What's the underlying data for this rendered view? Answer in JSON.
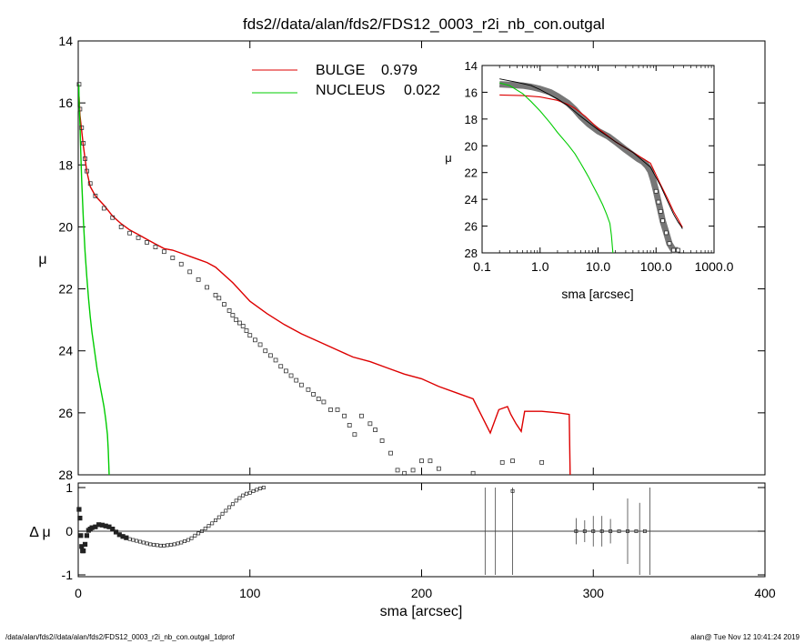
{
  "title": "fds2//data/alan/fds2/FDS12_0003_r2i_nb_con.outgal",
  "footer": {
    "path": "/data/alan/fds2//data/alan/fds2/FDS12_0003_r2i_nb_con.outgal_1dprof",
    "stamp": "alan@   Tue Nov 12 10:41:24 2019"
  },
  "legend": [
    {
      "label": "BULGE",
      "value": "0.979",
      "color": "#dd0000"
    },
    {
      "label": "NUCLEUS",
      "value": "0.022",
      "color": "#00cc00"
    }
  ],
  "chart_data": [
    {
      "id": "main_profile",
      "type": "scatter",
      "xlabel": "",
      "ylabel": "μ",
      "xlim": [
        0,
        400
      ],
      "ylim": [
        28,
        14
      ],
      "y_inverted": true,
      "yticks": [
        14,
        16,
        18,
        20,
        22,
        24,
        26,
        28
      ],
      "series": [
        {
          "name": "BULGE",
          "style": "line",
          "color": "#dd0000",
          "x": [
            0.5,
            1,
            2,
            3,
            4,
            5,
            7,
            10,
            15,
            20,
            25,
            30,
            35,
            40,
            45,
            50,
            55,
            60,
            65,
            70,
            75,
            80,
            90,
            100,
            110,
            120,
            130,
            140,
            150,
            160,
            170,
            180,
            190,
            200,
            210,
            220,
            230,
            235,
            240,
            245,
            250,
            252,
            255,
            258,
            260,
            265,
            270,
            280,
            286,
            286.5
          ],
          "y": [
            15.8,
            16.4,
            16.9,
            17.4,
            17.8,
            18.2,
            18.7,
            19.0,
            19.3,
            19.65,
            19.9,
            20.1,
            20.25,
            20.4,
            20.55,
            20.7,
            20.75,
            20.85,
            20.95,
            21.05,
            21.15,
            21.3,
            21.8,
            22.4,
            22.8,
            23.15,
            23.45,
            23.7,
            23.95,
            24.2,
            24.35,
            24.55,
            24.75,
            24.9,
            25.15,
            25.35,
            25.55,
            26.1,
            26.65,
            25.9,
            25.8,
            26.05,
            26.35,
            26.6,
            25.95,
            25.95,
            25.95,
            26.0,
            26.05,
            28.0
          ]
        },
        {
          "name": "NUCLEUS",
          "style": "line",
          "color": "#00cc00",
          "x": [
            0.3,
            0.5,
            1,
            1.5,
            2,
            3,
            4,
            5,
            6,
            7,
            8,
            9,
            10,
            11,
            12,
            13,
            14,
            15,
            16,
            17,
            17.5,
            18
          ],
          "y": [
            15.4,
            15.9,
            16.7,
            17.6,
            18.5,
            19.8,
            20.8,
            21.6,
            22.3,
            22.9,
            23.4,
            23.8,
            24.2,
            24.6,
            24.9,
            25.2,
            25.5,
            25.8,
            26.2,
            26.7,
            27.2,
            28.0
          ]
        },
        {
          "name": "data",
          "style": "open-squares",
          "color": "#333333",
          "x": [
            0.5,
            1,
            2,
            3,
            4,
            5,
            7,
            10,
            15,
            20,
            25,
            30,
            35,
            40,
            45,
            50,
            55,
            60,
            65,
            70,
            75,
            80,
            82,
            85,
            88,
            90,
            92,
            94,
            96,
            98,
            100,
            103,
            106,
            109,
            112,
            115,
            118,
            121,
            124,
            127,
            130,
            134,
            137,
            140,
            143,
            147,
            151,
            155,
            158,
            161,
            165,
            170,
            173,
            177,
            182,
            186,
            190,
            195,
            200,
            205,
            210,
            230,
            247,
            253,
            270
          ],
          "y": [
            15.4,
            16.2,
            16.8,
            17.3,
            17.8,
            18.2,
            18.6,
            19.0,
            19.4,
            19.7,
            20.0,
            20.2,
            20.35,
            20.5,
            20.65,
            20.8,
            21.0,
            21.2,
            21.45,
            21.7,
            21.95,
            22.2,
            22.3,
            22.5,
            22.7,
            22.85,
            23.0,
            23.1,
            23.2,
            23.35,
            23.5,
            23.65,
            23.8,
            24.0,
            24.15,
            24.3,
            24.5,
            24.65,
            24.8,
            24.95,
            25.1,
            25.25,
            25.4,
            25.55,
            25.65,
            25.9,
            25.9,
            26.1,
            26.4,
            26.7,
            26.1,
            26.35,
            26.55,
            26.9,
            27.3,
            27.85,
            27.95,
            27.85,
            27.55,
            27.55,
            27.8,
            27.95,
            27.6,
            27.55,
            27.6
          ]
        }
      ]
    },
    {
      "id": "residuals",
      "type": "scatter",
      "xlabel": "sma [arcsec]",
      "ylabel": "Δ μ",
      "xlim": [
        0,
        400
      ],
      "ylim": [
        -1,
        1
      ],
      "xticks": [
        0,
        100,
        200,
        300,
        400
      ],
      "yticks": [
        -1,
        0,
        1
      ],
      "series": [
        {
          "name": "residual",
          "style": "open-squares",
          "color": "#222222",
          "x": [
            0.5,
            1,
            1.5,
            2,
            2.5,
            3,
            4,
            5,
            6,
            7,
            8,
            10,
            12,
            14,
            16,
            18,
            20,
            22,
            24,
            26,
            28,
            30,
            32,
            34,
            36,
            38,
            40,
            42,
            44,
            46,
            48,
            50,
            52,
            54,
            56,
            58,
            60,
            62,
            64,
            66,
            68,
            70,
            72,
            74,
            76,
            78,
            80,
            82,
            84,
            86,
            88,
            90,
            92,
            94,
            96,
            98,
            100,
            102,
            104,
            106,
            108,
            253,
            290,
            295,
            300,
            305,
            310,
            315,
            320,
            325,
            330
          ],
          "y": [
            0.5,
            0.3,
            -0.1,
            -0.35,
            -0.45,
            -0.45,
            -0.3,
            -0.1,
            0.02,
            0.05,
            0.08,
            0.1,
            0.15,
            0.14,
            0.12,
            0.1,
            0.05,
            -0.02,
            -0.08,
            -0.12,
            -0.15,
            -0.18,
            -0.2,
            -0.22,
            -0.24,
            -0.26,
            -0.28,
            -0.3,
            -0.31,
            -0.32,
            -0.33,
            -0.33,
            -0.32,
            -0.31,
            -0.3,
            -0.28,
            -0.26,
            -0.23,
            -0.2,
            -0.16,
            -0.1,
            -0.05,
            0.0,
            0.06,
            0.12,
            0.18,
            0.25,
            0.32,
            0.4,
            0.47,
            0.55,
            0.62,
            0.7,
            0.76,
            0.82,
            0.86,
            0.88,
            0.92,
            0.95,
            0.98,
            1.0,
            0.92,
            0.0,
            0.0,
            0.0,
            0.0,
            0.0,
            0.0,
            0.0,
            0.0,
            0.0
          ]
        }
      ],
      "error_bars": [
        {
          "x": 237,
          "lo": -1,
          "hi": 1
        },
        {
          "x": 243,
          "lo": -1,
          "hi": 1
        },
        {
          "x": 253,
          "lo": -1,
          "hi": 1
        },
        {
          "x": 290,
          "lo": -0.3,
          "hi": 0.3
        },
        {
          "x": 295,
          "lo": -0.25,
          "hi": 0.25
        },
        {
          "x": 300,
          "lo": -0.35,
          "hi": 0.35
        },
        {
          "x": 305,
          "lo": -0.35,
          "hi": 0.35
        },
        {
          "x": 310,
          "lo": -0.28,
          "hi": 0.28
        },
        {
          "x": 320,
          "lo": -0.75,
          "hi": 0.75
        },
        {
          "x": 327,
          "lo": -1,
          "hi": 0.65
        },
        {
          "x": 333,
          "lo": -1,
          "hi": 1
        }
      ]
    },
    {
      "id": "inset_log",
      "type": "scatter",
      "xscale": "log",
      "xlabel": "sma [arcsec]",
      "ylabel": "μ",
      "xlim": [
        0.1,
        1000
      ],
      "ylim": [
        28,
        14
      ],
      "xticks": [
        0.1,
        1.0,
        10.0,
        100.0,
        1000.0
      ],
      "xticklabels": [
        "0.1",
        "1.0",
        "10.0",
        "100.0",
        "1000.0"
      ],
      "yticks": [
        14,
        16,
        18,
        20,
        22,
        24,
        26,
        28
      ],
      "series": [
        {
          "name": "data",
          "style": "thick-band",
          "color": "#777777",
          "x": [
            0.2,
            0.3,
            0.5,
            0.7,
            1.0,
            1.5,
            2.0,
            3.0,
            4.0,
            5.0,
            7.0,
            10.0,
            15.0,
            20.0,
            30.0,
            40.0,
            50.0,
            60.0,
            70.0,
            80.0,
            90.0,
            100.0,
            110.0,
            120.0,
            130.0,
            150.0,
            170.0,
            200.0,
            240.0
          ],
          "y": [
            15.4,
            15.45,
            15.5,
            15.6,
            15.75,
            16.0,
            16.3,
            16.8,
            17.3,
            17.8,
            18.4,
            18.9,
            19.3,
            19.7,
            20.3,
            20.7,
            21.0,
            21.2,
            21.5,
            21.9,
            22.6,
            23.4,
            24.2,
            24.9,
            25.6,
            26.5,
            27.3,
            27.8,
            27.8
          ]
        },
        {
          "name": "BULGE",
          "style": "line",
          "color": "#dd0000",
          "x": [
            0.2,
            0.5,
            1.0,
            2.0,
            3.0,
            4.0,
            6.0,
            10.0,
            20.0,
            40.0,
            80.0,
            120.0,
            160.0,
            200.0,
            240.0,
            270.0,
            286.0
          ],
          "y": [
            16.2,
            16.25,
            16.35,
            16.6,
            16.9,
            17.2,
            17.8,
            18.7,
            19.7,
            20.5,
            21.3,
            22.9,
            24.0,
            24.9,
            25.5,
            25.9,
            26.1
          ]
        },
        {
          "name": "NUCLEUS",
          "style": "line",
          "color": "#00cc00",
          "x": [
            0.2,
            0.3,
            0.5,
            0.7,
            1.0,
            1.5,
            2.0,
            3.0,
            4.0,
            5.0,
            6.0,
            7.0,
            8.0,
            10.0,
            12.0,
            14.0,
            16.0,
            17.0,
            18.0
          ],
          "y": [
            15.3,
            15.5,
            16.1,
            16.7,
            17.4,
            18.3,
            19.0,
            19.9,
            20.6,
            21.3,
            21.9,
            22.4,
            22.9,
            23.7,
            24.4,
            25.1,
            25.8,
            26.7,
            28.0
          ]
        },
        {
          "name": "model",
          "style": "line",
          "color": "#000000",
          "x": [
            0.2,
            0.4,
            0.7,
            1.0,
            2.0,
            3.0,
            5.0,
            10.0,
            20.0,
            40.0,
            80.0,
            120.0,
            160.0,
            200.0,
            240.0,
            270.0,
            286.0
          ],
          "y": [
            15.0,
            15.25,
            15.5,
            15.8,
            16.5,
            17.0,
            17.8,
            18.8,
            19.7,
            20.5,
            21.6,
            23.0,
            24.2,
            25.1,
            25.7,
            26.0,
            26.2
          ]
        }
      ]
    }
  ]
}
